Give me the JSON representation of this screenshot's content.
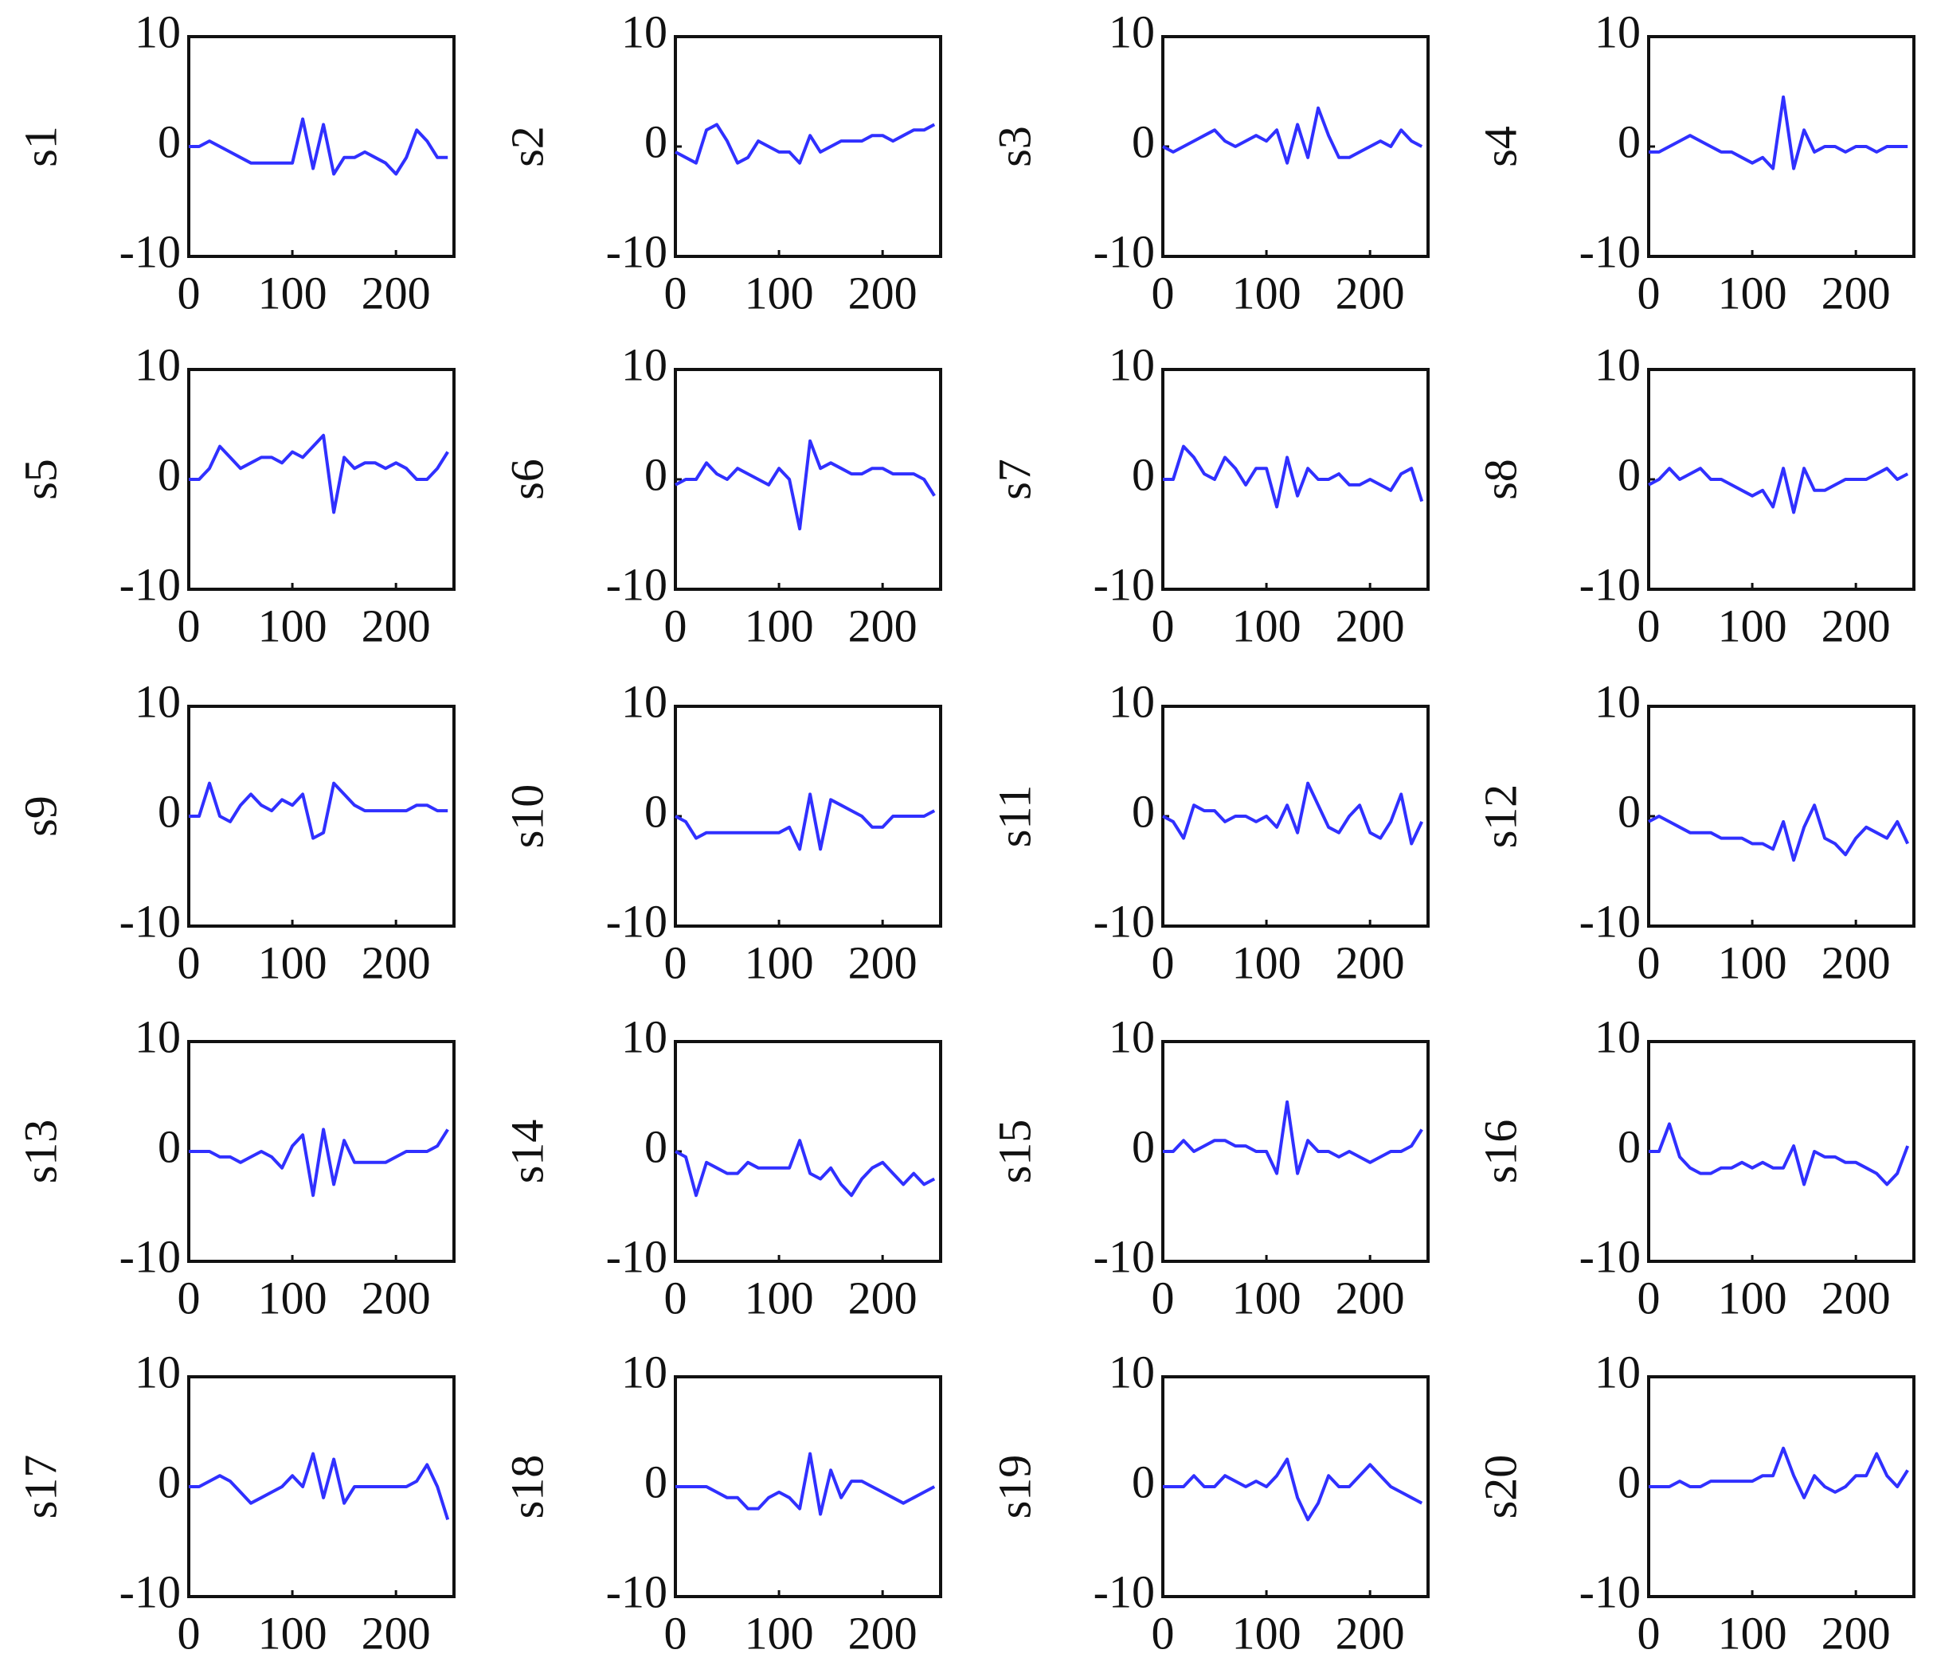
{
  "chart_data": [
    {
      "type": "line",
      "ylabel": "s1",
      "color": "#3030ff",
      "xlim": [
        0,
        256
      ],
      "ylim": [
        -10,
        10
      ],
      "xticks": [
        0,
        100,
        200
      ],
      "yticks": [
        -10,
        0,
        10
      ],
      "x": [
        0,
        10,
        20,
        30,
        40,
        50,
        60,
        70,
        80,
        90,
        100,
        110,
        120,
        130,
        140,
        150,
        160,
        170,
        180,
        190,
        200,
        210,
        220,
        230,
        240,
        250
      ],
      "values": [
        0,
        0,
        0.5,
        0,
        -0.5,
        -1,
        -1.5,
        -1.5,
        -1.5,
        -1.5,
        -1.5,
        2.5,
        -2,
        2,
        -2.5,
        -1,
        -1,
        -0.5,
        -1,
        -1.5,
        -2.5,
        -1,
        1.5,
        0.5,
        -1,
        -1
      ]
    },
    {
      "type": "line",
      "ylabel": "s2",
      "color": "#3030ff",
      "xlim": [
        0,
        256
      ],
      "ylim": [
        -10,
        10
      ],
      "xticks": [
        0,
        100,
        200
      ],
      "yticks": [
        -10,
        0,
        10
      ],
      "x": [
        0,
        10,
        20,
        30,
        40,
        50,
        60,
        70,
        80,
        90,
        100,
        110,
        120,
        130,
        140,
        150,
        160,
        170,
        180,
        190,
        200,
        210,
        220,
        230,
        240,
        250
      ],
      "values": [
        -0.5,
        -1,
        -1.5,
        1.5,
        2,
        0.5,
        -1.5,
        -1,
        0.5,
        0,
        -0.5,
        -0.5,
        -1.5,
        1,
        -0.5,
        0,
        0.5,
        0.5,
        0.5,
        1,
        1,
        0.5,
        1,
        1.5,
        1.5,
        2
      ]
    },
    {
      "type": "line",
      "ylabel": "s3",
      "color": "#3030ff",
      "xlim": [
        0,
        256
      ],
      "ylim": [
        -10,
        10
      ],
      "xticks": [
        0,
        100,
        200
      ],
      "yticks": [
        -10,
        0,
        10
      ],
      "x": [
        0,
        10,
        20,
        30,
        40,
        50,
        60,
        70,
        80,
        90,
        100,
        110,
        120,
        130,
        140,
        150,
        160,
        170,
        180,
        190,
        200,
        210,
        220,
        230,
        240,
        250
      ],
      "values": [
        0,
        -0.5,
        0,
        0.5,
        1,
        1.5,
        0.5,
        0,
        0.5,
        1,
        0.5,
        1.5,
        -1.5,
        2,
        -1,
        3.5,
        1,
        -1,
        -1,
        -0.5,
        0,
        0.5,
        0,
        1.5,
        0.5,
        0
      ]
    },
    {
      "type": "line",
      "ylabel": "s4",
      "color": "#3030ff",
      "xlim": [
        0,
        256
      ],
      "ylim": [
        -10,
        10
      ],
      "xticks": [
        0,
        100,
        200
      ],
      "yticks": [
        -10,
        0,
        10
      ],
      "x": [
        0,
        10,
        20,
        30,
        40,
        50,
        60,
        70,
        80,
        90,
        100,
        110,
        120,
        130,
        140,
        150,
        160,
        170,
        180,
        190,
        200,
        210,
        220,
        230,
        240,
        250
      ],
      "values": [
        -0.5,
        -0.5,
        0,
        0.5,
        1,
        0.5,
        0,
        -0.5,
        -0.5,
        -1,
        -1.5,
        -1,
        -2,
        4.5,
        -2,
        1.5,
        -0.5,
        0,
        0,
        -0.5,
        0,
        0,
        -0.5,
        0,
        0,
        0
      ]
    },
    {
      "type": "line",
      "ylabel": "s5",
      "color": "#3030ff",
      "xlim": [
        0,
        256
      ],
      "ylim": [
        -10,
        10
      ],
      "xticks": [
        0,
        100,
        200
      ],
      "yticks": [
        -10,
        0,
        10
      ],
      "x": [
        0,
        10,
        20,
        30,
        40,
        50,
        60,
        70,
        80,
        90,
        100,
        110,
        120,
        130,
        140,
        150,
        160,
        170,
        180,
        190,
        200,
        210,
        220,
        230,
        240,
        250
      ],
      "values": [
        0,
        0,
        1,
        3,
        2,
        1,
        1.5,
        2,
        2,
        1.5,
        2.5,
        2,
        3,
        4,
        -3,
        2,
        1,
        1.5,
        1.5,
        1,
        1.5,
        1,
        0,
        0,
        1,
        2.5
      ]
    },
    {
      "type": "line",
      "ylabel": "s6",
      "color": "#3030ff",
      "xlim": [
        0,
        256
      ],
      "ylim": [
        -10,
        10
      ],
      "xticks": [
        0,
        100,
        200
      ],
      "yticks": [
        -10,
        0,
        10
      ],
      "x": [
        0,
        10,
        20,
        30,
        40,
        50,
        60,
        70,
        80,
        90,
        100,
        110,
        120,
        130,
        140,
        150,
        160,
        170,
        180,
        190,
        200,
        210,
        220,
        230,
        240,
        250
      ],
      "values": [
        -0.5,
        0,
        0,
        1.5,
        0.5,
        0,
        1,
        0.5,
        0,
        -0.5,
        1,
        0,
        -4.5,
        3.5,
        1,
        1.5,
        1,
        0.5,
        0.5,
        1,
        1,
        0.5,
        0.5,
        0.5,
        0,
        -1.5
      ]
    },
    {
      "type": "line",
      "ylabel": "s7",
      "color": "#3030ff",
      "xlim": [
        0,
        256
      ],
      "ylim": [
        -10,
        10
      ],
      "xticks": [
        0,
        100,
        200
      ],
      "yticks": [
        -10,
        0,
        10
      ],
      "x": [
        0,
        10,
        20,
        30,
        40,
        50,
        60,
        70,
        80,
        90,
        100,
        110,
        120,
        130,
        140,
        150,
        160,
        170,
        180,
        190,
        200,
        210,
        220,
        230,
        240,
        250
      ],
      "values": [
        0,
        0,
        3,
        2,
        0.5,
        0,
        2,
        1,
        -0.5,
        1,
        1,
        -2.5,
        2,
        -1.5,
        1,
        0,
        0,
        0.5,
        -0.5,
        -0.5,
        0,
        -0.5,
        -1,
        0.5,
        1,
        -2
      ]
    },
    {
      "type": "line",
      "ylabel": "s8",
      "color": "#3030ff",
      "xlim": [
        0,
        256
      ],
      "ylim": [
        -10,
        10
      ],
      "xticks": [
        0,
        100,
        200
      ],
      "yticks": [
        -10,
        0,
        10
      ],
      "x": [
        0,
        10,
        20,
        30,
        40,
        50,
        60,
        70,
        80,
        90,
        100,
        110,
        120,
        130,
        140,
        150,
        160,
        170,
        180,
        190,
        200,
        210,
        220,
        230,
        240,
        250
      ],
      "values": [
        -0.5,
        0,
        1,
        0,
        0.5,
        1,
        0,
        0,
        -0.5,
        -1,
        -1.5,
        -1,
        -2.5,
        1,
        -3,
        1,
        -1,
        -1,
        -0.5,
        0,
        0,
        0,
        0.5,
        1,
        0,
        0.5
      ]
    },
    {
      "type": "line",
      "ylabel": "s9",
      "color": "#3030ff",
      "xlim": [
        0,
        256
      ],
      "ylim": [
        -10,
        10
      ],
      "xticks": [
        0,
        100,
        200
      ],
      "yticks": [
        -10,
        0,
        10
      ],
      "x": [
        0,
        10,
        20,
        30,
        40,
        50,
        60,
        70,
        80,
        90,
        100,
        110,
        120,
        130,
        140,
        150,
        160,
        170,
        180,
        190,
        200,
        210,
        220,
        230,
        240,
        250
      ],
      "values": [
        0,
        0,
        3,
        0,
        -0.5,
        1,
        2,
        1,
        0.5,
        1.5,
        1,
        2,
        -2,
        -1.5,
        3,
        2,
        1,
        0.5,
        0.5,
        0.5,
        0.5,
        0.5,
        1,
        1,
        0.5,
        0.5
      ]
    },
    {
      "type": "line",
      "ylabel": "s10",
      "color": "#3030ff",
      "xlim": [
        0,
        256
      ],
      "ylim": [
        -10,
        10
      ],
      "xticks": [
        0,
        100,
        200
      ],
      "yticks": [
        -10,
        0,
        10
      ],
      "x": [
        0,
        10,
        20,
        30,
        40,
        50,
        60,
        70,
        80,
        90,
        100,
        110,
        120,
        130,
        140,
        150,
        160,
        170,
        180,
        190,
        200,
        210,
        220,
        230,
        240,
        250
      ],
      "values": [
        0,
        -0.5,
        -2,
        -1.5,
        -1.5,
        -1.5,
        -1.5,
        -1.5,
        -1.5,
        -1.5,
        -1.5,
        -1,
        -3,
        2,
        -3,
        1.5,
        1,
        0.5,
        0,
        -1,
        -1,
        0,
        0,
        0,
        0,
        0.5
      ]
    },
    {
      "type": "line",
      "ylabel": "s11",
      "color": "#3030ff",
      "xlim": [
        0,
        256
      ],
      "ylim": [
        -10,
        10
      ],
      "xticks": [
        0,
        100,
        200
      ],
      "yticks": [
        -10,
        0,
        10
      ],
      "x": [
        0,
        10,
        20,
        30,
        40,
        50,
        60,
        70,
        80,
        90,
        100,
        110,
        120,
        130,
        140,
        150,
        160,
        170,
        180,
        190,
        200,
        210,
        220,
        230,
        240,
        250
      ],
      "values": [
        0,
        -0.5,
        -2,
        1,
        0.5,
        0.5,
        -0.5,
        0,
        0,
        -0.5,
        0,
        -1,
        1,
        -1.5,
        3,
        1,
        -1,
        -1.5,
        0,
        1,
        -1.5,
        -2,
        -0.5,
        2,
        -2.5,
        -0.5
      ]
    },
    {
      "type": "line",
      "ylabel": "s12",
      "color": "#3030ff",
      "xlim": [
        0,
        256
      ],
      "ylim": [
        -10,
        10
      ],
      "xticks": [
        0,
        100,
        200
      ],
      "yticks": [
        -10,
        0,
        10
      ],
      "x": [
        0,
        10,
        20,
        30,
        40,
        50,
        60,
        70,
        80,
        90,
        100,
        110,
        120,
        130,
        140,
        150,
        160,
        170,
        180,
        190,
        200,
        210,
        220,
        230,
        240,
        250
      ],
      "values": [
        -0.5,
        0,
        -0.5,
        -1,
        -1.5,
        -1.5,
        -1.5,
        -2,
        -2,
        -2,
        -2.5,
        -2.5,
        -3,
        -0.5,
        -4,
        -1,
        1,
        -2,
        -2.5,
        -3.5,
        -2,
        -1,
        -1.5,
        -2,
        -0.5,
        -2.5
      ]
    },
    {
      "type": "line",
      "ylabel": "s13",
      "color": "#3030ff",
      "xlim": [
        0,
        256
      ],
      "ylim": [
        -10,
        10
      ],
      "xticks": [
        0,
        100,
        200
      ],
      "yticks": [
        -10,
        0,
        10
      ],
      "x": [
        0,
        10,
        20,
        30,
        40,
        50,
        60,
        70,
        80,
        90,
        100,
        110,
        120,
        130,
        140,
        150,
        160,
        170,
        180,
        190,
        200,
        210,
        220,
        230,
        240,
        250
      ],
      "values": [
        0,
        0,
        0,
        -0.5,
        -0.5,
        -1,
        -0.5,
        0,
        -0.5,
        -1.5,
        0.5,
        1.5,
        -4,
        2,
        -3,
        1,
        -1,
        -1,
        -1,
        -1,
        -0.5,
        0,
        0,
        0,
        0.5,
        2
      ]
    },
    {
      "type": "line",
      "ylabel": "s14",
      "color": "#3030ff",
      "xlim": [
        0,
        256
      ],
      "ylim": [
        -10,
        10
      ],
      "xticks": [
        0,
        100,
        200
      ],
      "yticks": [
        -10,
        0,
        10
      ],
      "x": [
        0,
        10,
        20,
        30,
        40,
        50,
        60,
        70,
        80,
        90,
        100,
        110,
        120,
        130,
        140,
        150,
        160,
        170,
        180,
        190,
        200,
        210,
        220,
        230,
        240,
        250
      ],
      "values": [
        0,
        -0.5,
        -4,
        -1,
        -1.5,
        -2,
        -2,
        -1,
        -1.5,
        -1.5,
        -1.5,
        -1.5,
        1,
        -2,
        -2.5,
        -1.5,
        -3,
        -4,
        -2.5,
        -1.5,
        -1,
        -2,
        -3,
        -2,
        -3,
        -2.5
      ]
    },
    {
      "type": "line",
      "ylabel": "s15",
      "color": "#3030ff",
      "xlim": [
        0,
        256
      ],
      "ylim": [
        -10,
        10
      ],
      "xticks": [
        0,
        100,
        200
      ],
      "yticks": [
        -10,
        0,
        10
      ],
      "x": [
        0,
        10,
        20,
        30,
        40,
        50,
        60,
        70,
        80,
        90,
        100,
        110,
        120,
        130,
        140,
        150,
        160,
        170,
        180,
        190,
        200,
        210,
        220,
        230,
        240,
        250
      ],
      "values": [
        0,
        0,
        1,
        0,
        0.5,
        1,
        1,
        0.5,
        0.5,
        0,
        0,
        -2,
        4.5,
        -2,
        1,
        0,
        0,
        -0.5,
        0,
        -0.5,
        -1,
        -0.5,
        0,
        0,
        0.5,
        2
      ]
    },
    {
      "type": "line",
      "ylabel": "s16",
      "color": "#3030ff",
      "xlim": [
        0,
        256
      ],
      "ylim": [
        -10,
        10
      ],
      "xticks": [
        0,
        100,
        200
      ],
      "yticks": [
        -10,
        0,
        10
      ],
      "x": [
        0,
        10,
        20,
        30,
        40,
        50,
        60,
        70,
        80,
        90,
        100,
        110,
        120,
        130,
        140,
        150,
        160,
        170,
        180,
        190,
        200,
        210,
        220,
        230,
        240,
        250
      ],
      "values": [
        0,
        0,
        2.5,
        -0.5,
        -1.5,
        -2,
        -2,
        -1.5,
        -1.5,
        -1,
        -1.5,
        -1,
        -1.5,
        -1.5,
        0.5,
        -3,
        0,
        -0.5,
        -0.5,
        -1,
        -1,
        -1.5,
        -2,
        -3,
        -2,
        0.5
      ]
    },
    {
      "type": "line",
      "ylabel": "s17",
      "color": "#3030ff",
      "xlim": [
        0,
        256
      ],
      "ylim": [
        -10,
        10
      ],
      "xticks": [
        0,
        100,
        200
      ],
      "yticks": [
        -10,
        0,
        10
      ],
      "x": [
        0,
        10,
        20,
        30,
        40,
        50,
        60,
        70,
        80,
        90,
        100,
        110,
        120,
        130,
        140,
        150,
        160,
        170,
        180,
        190,
        200,
        210,
        220,
        230,
        240,
        250
      ],
      "values": [
        0,
        0,
        0.5,
        1,
        0.5,
        -0.5,
        -1.5,
        -1,
        -0.5,
        0,
        1,
        0,
        3,
        -1,
        2.5,
        -1.5,
        0,
        0,
        0,
        0,
        0,
        0,
        0.5,
        2,
        0,
        -3
      ]
    },
    {
      "type": "line",
      "ylabel": "s18",
      "color": "#3030ff",
      "xlim": [
        0,
        256
      ],
      "ylim": [
        -10,
        10
      ],
      "xticks": [
        0,
        100,
        200
      ],
      "yticks": [
        -10,
        0,
        10
      ],
      "x": [
        0,
        10,
        20,
        30,
        40,
        50,
        60,
        70,
        80,
        90,
        100,
        110,
        120,
        130,
        140,
        150,
        160,
        170,
        180,
        190,
        200,
        210,
        220,
        230,
        240,
        250
      ],
      "values": [
        0,
        0,
        0,
        0,
        -0.5,
        -1,
        -1,
        -2,
        -2,
        -1,
        -0.5,
        -1,
        -2,
        3,
        -2.5,
        1.5,
        -1,
        0.5,
        0.5,
        0,
        -0.5,
        -1,
        -1.5,
        -1,
        -0.5,
        0
      ]
    },
    {
      "type": "line",
      "ylabel": "s19",
      "color": "#3030ff",
      "xlim": [
        0,
        256
      ],
      "ylim": [
        -10,
        10
      ],
      "xticks": [
        0,
        100,
        200
      ],
      "yticks": [
        -10,
        0,
        10
      ],
      "x": [
        0,
        10,
        20,
        30,
        40,
        50,
        60,
        70,
        80,
        90,
        100,
        110,
        120,
        130,
        140,
        150,
        160,
        170,
        180,
        190,
        200,
        210,
        220,
        230,
        240,
        250
      ],
      "values": [
        0,
        0,
        0,
        1,
        0,
        0,
        1,
        0.5,
        0,
        0.5,
        0,
        1,
        2.5,
        -1,
        -3,
        -1.5,
        1,
        0,
        0,
        1,
        2,
        1,
        0,
        -0.5,
        -1,
        -1.5
      ]
    },
    {
      "type": "line",
      "ylabel": "s20",
      "color": "#3030ff",
      "xlim": [
        0,
        256
      ],
      "ylim": [
        -10,
        10
      ],
      "xticks": [
        0,
        100,
        200
      ],
      "yticks": [
        -10,
        0,
        10
      ],
      "x": [
        0,
        10,
        20,
        30,
        40,
        50,
        60,
        70,
        80,
        90,
        100,
        110,
        120,
        130,
        140,
        150,
        160,
        170,
        180,
        190,
        200,
        210,
        220,
        230,
        240,
        250
      ],
      "values": [
        0,
        0,
        0,
        0.5,
        0,
        0,
        0.5,
        0.5,
        0.5,
        0.5,
        0.5,
        1,
        1,
        3.5,
        1,
        -1,
        1,
        0,
        -0.5,
        0,
        1,
        1,
        3,
        1,
        0,
        1.5
      ]
    }
  ]
}
